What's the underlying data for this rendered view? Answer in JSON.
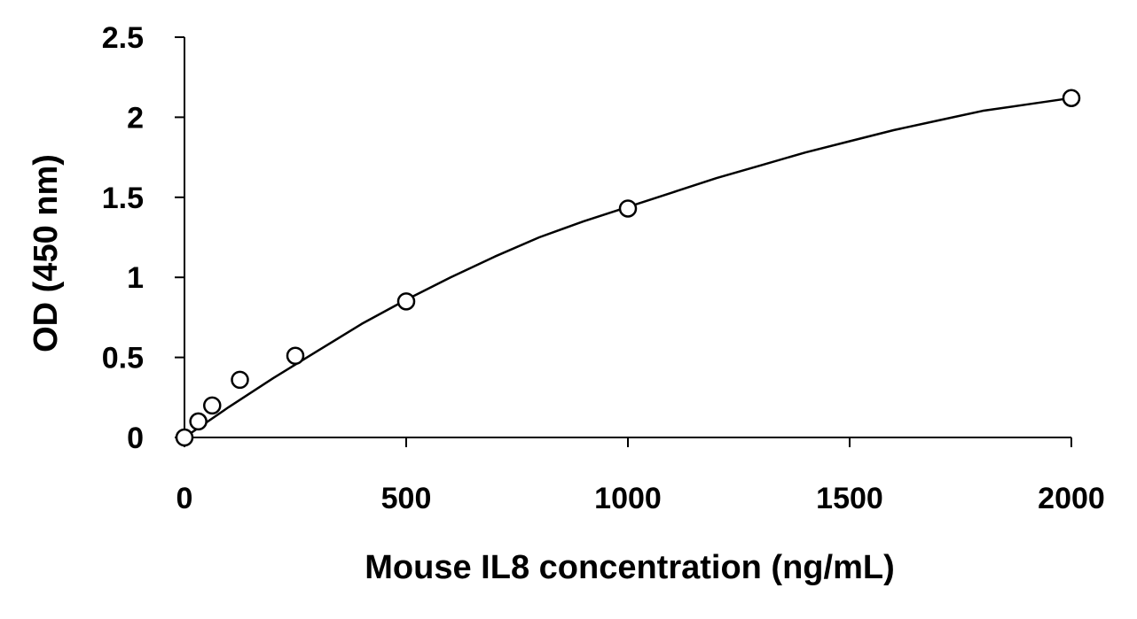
{
  "chart_data": {
    "type": "scatter",
    "title": "",
    "xlabel": "Mouse IL8 concentration (ng/mL)",
    "ylabel": "OD (450 nm)",
    "xlim": [
      0,
      2000
    ],
    "ylim": [
      0,
      2.5
    ],
    "x_ticks": [
      0,
      500,
      1000,
      1500,
      2000
    ],
    "x_tick_labels": [
      "0",
      "500",
      "1000",
      "1500",
      "2000"
    ],
    "y_ticks": [
      0,
      0.5,
      1,
      1.5,
      2,
      2.5
    ],
    "y_tick_labels": [
      "0",
      "0.5",
      "1",
      "1.5",
      "2",
      "2.5"
    ],
    "grid": false,
    "legend": "none",
    "marker": "open-circle",
    "series": [
      {
        "x": [
          0,
          31.25,
          62.5,
          125,
          250,
          500,
          1000,
          2000
        ],
        "y": [
          0.0,
          0.1,
          0.2,
          0.36,
          0.51,
          0.85,
          1.43,
          2.12
        ]
      }
    ],
    "fit_curve": {
      "x": [
        0,
        100,
        200,
        300,
        400,
        500,
        600,
        700,
        800,
        900,
        1000,
        1100,
        1200,
        1300,
        1400,
        1500,
        1600,
        1700,
        1800,
        1900,
        2000
      ],
      "y": [
        0.0,
        0.19,
        0.37,
        0.54,
        0.71,
        0.86,
        1.0,
        1.13,
        1.25,
        1.35,
        1.44,
        1.53,
        1.62,
        1.7,
        1.78,
        1.85,
        1.92,
        1.98,
        2.04,
        2.08,
        2.12
      ]
    },
    "colors": {
      "axis": "#000000",
      "marker_stroke": "#000000",
      "marker_fill": "#ffffff",
      "curve": "#000000"
    }
  }
}
